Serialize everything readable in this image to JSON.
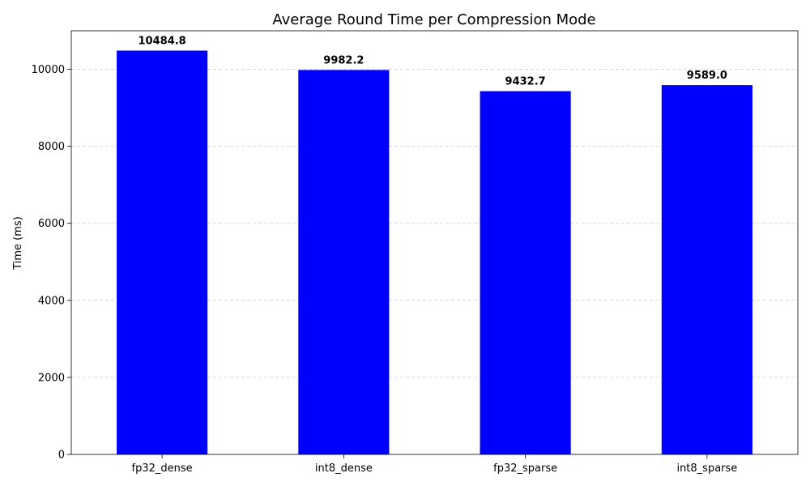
{
  "chart_data": {
    "type": "bar",
    "title": "Average Round Time per Compression Mode",
    "xlabel": "",
    "ylabel": "Time (ms)",
    "categories": [
      "fp32_dense",
      "int8_dense",
      "fp32_sparse",
      "int8_sparse"
    ],
    "values": [
      10484.8,
      9982.2,
      9432.7,
      9589.0
    ],
    "value_labels": [
      "10484.8",
      "9982.2",
      "9432.7",
      "9589.0"
    ],
    "ylim": [
      0,
      11000
    ],
    "yticks": [
      0,
      2000,
      4000,
      6000,
      8000,
      10000
    ],
    "grid": "y",
    "bar_color": "#0000ff"
  }
}
